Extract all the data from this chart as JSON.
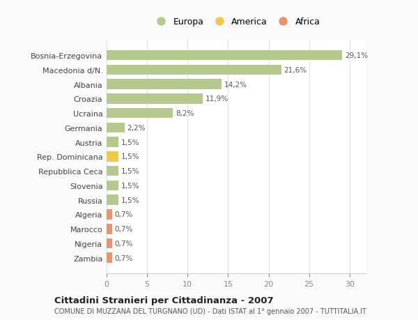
{
  "categories": [
    "Bosnia-Erzegovina",
    "Macedonia d/N.",
    "Albania",
    "Croazia",
    "Ucraina",
    "Germania",
    "Austria",
    "Rep. Dominicana",
    "Repubblica Ceca",
    "Slovenia",
    "Russia",
    "Algeria",
    "Marocco",
    "Nigeria",
    "Zambia"
  ],
  "values": [
    29.1,
    21.6,
    14.2,
    11.9,
    8.2,
    2.2,
    1.5,
    1.5,
    1.5,
    1.5,
    1.5,
    0.7,
    0.7,
    0.7,
    0.7
  ],
  "labels": [
    "29,1%",
    "21,6%",
    "14,2%",
    "11,9%",
    "8,2%",
    "2,2%",
    "1,5%",
    "1,5%",
    "1,5%",
    "1,5%",
    "1,5%",
    "0,7%",
    "0,7%",
    "0,7%",
    "0,7%"
  ],
  "continent": [
    "Europa",
    "Europa",
    "Europa",
    "Europa",
    "Europa",
    "Europa",
    "Europa",
    "America",
    "Europa",
    "Europa",
    "Europa",
    "Africa",
    "Africa",
    "Africa",
    "Africa"
  ],
  "colors": {
    "Europa": "#b5c98e",
    "America": "#f0c84a",
    "Africa": "#e8956d"
  },
  "xlim": [
    0,
    32
  ],
  "xticks": [
    0,
    5,
    10,
    15,
    20,
    25,
    30
  ],
  "title": "Cittadini Stranieri per Cittadinanza - 2007",
  "subtitle": "COMUNE DI MUZZANA DEL TURGNANO (UD) - Dati ISTAT al 1° gennaio 2007 - TUTTITALIA.IT",
  "background_color": "#f9f9f9",
  "bar_background": "#ffffff",
  "legend_items": [
    "Europa",
    "America",
    "Africa"
  ],
  "legend_colors": [
    "#b5c98e",
    "#f0c84a",
    "#e8956d"
  ]
}
